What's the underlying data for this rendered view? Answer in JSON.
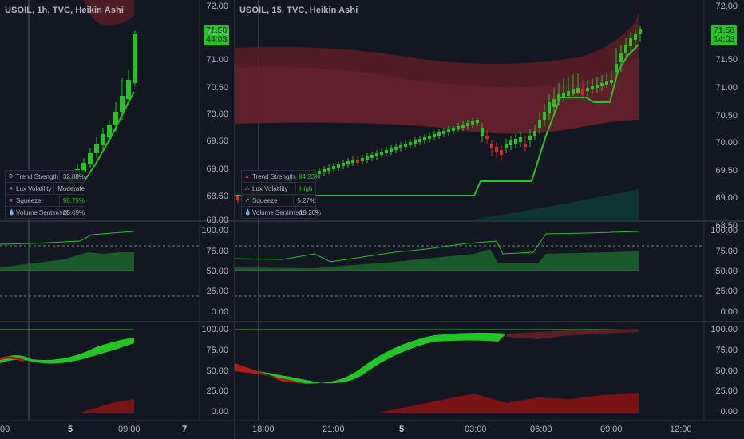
{
  "left_chart": {
    "symbol": "USOIL, 1h, TVC, Heikin Ashi",
    "price_axis": [
      "72.00",
      "71.50",
      "71.00",
      "70.50",
      "70.00",
      "69.50",
      "69.00",
      "68.50",
      "68.00"
    ],
    "price_tag": {
      "price": "71.58",
      "countdown": "44:03"
    },
    "osc1_axis": [
      "100.00",
      "75.00",
      "50.00",
      "25.00",
      "0.00"
    ],
    "osc2_axis": [
      "100.00",
      "75.00",
      "50.00",
      "25.00",
      "0.00"
    ],
    "time_labels": [
      {
        "text": "00",
        "bold": false
      },
      {
        "text": "5",
        "bold": true
      },
      {
        "text": "09:00",
        "bold": false
      },
      {
        "text": "7",
        "bold": true
      }
    ],
    "table": [
      {
        "icon": "gear-icon",
        "label": "Trend Strength",
        "value": "32.88%",
        "highlight": false
      },
      {
        "icon": "square-icon",
        "label": "Lux Volatility",
        "value": "Moderate",
        "highlight": false
      },
      {
        "icon": "square-icon",
        "label": "Squeeze",
        "value": "96.75%",
        "highlight": true
      },
      {
        "icon": "drop-icon",
        "label": "Volume Sentiment",
        "value": "25.09%",
        "highlight": false
      }
    ]
  },
  "right_chart": {
    "symbol": "USOIL, 15, TVC, Heikin Ashi",
    "price_axis": [
      "72.00",
      "71.50",
      "71.00",
      "70.50",
      "70.00",
      "69.50",
      "69.00",
      "68.50"
    ],
    "price_tag": {
      "price": "71.58",
      "countdown": "14:03"
    },
    "osc1_axis": [
      "100.00",
      "75.00",
      "50.00",
      "25.00",
      "0.00"
    ],
    "osc2_axis": [
      "100.00",
      "75.00",
      "50.00",
      "25.00",
      "0.00"
    ],
    "time_labels": [
      {
        "text": "18:00",
        "bold": false
      },
      {
        "text": "21:00",
        "bold": false
      },
      {
        "text": "5",
        "bold": true
      },
      {
        "text": "03:00",
        "bold": false
      },
      {
        "text": "06:00",
        "bold": false
      },
      {
        "text": "09:00",
        "bold": false
      },
      {
        "text": "12:00",
        "bold": false
      }
    ],
    "table": [
      {
        "icon": "flame-icon",
        "label": "Trend Strength",
        "value": "84.23%",
        "highlight": true
      },
      {
        "icon": "warning-icon",
        "label": "Lux Volatility",
        "value": "High",
        "highlight": true
      },
      {
        "icon": "arrow-icon",
        "label": "Squeeze",
        "value": "5.27%",
        "highlight": false
      },
      {
        "icon": "drop-icon",
        "label": "Volume Sentiment",
        "value": "19.20%",
        "highlight": false
      }
    ]
  },
  "colors": {
    "bull": "#22c524",
    "bear": "#e0262b",
    "background": "#131722",
    "grid": "#2a2e39",
    "band": "#5c1f26"
  }
}
